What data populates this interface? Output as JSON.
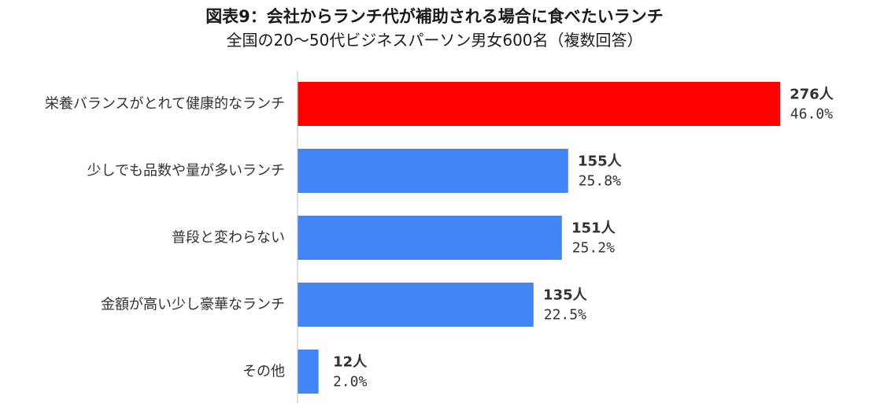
{
  "chart_data": {
    "type": "bar",
    "orientation": "horizontal",
    "title": "図表9：会社からランチ代が補助される場合に食べたいランチ",
    "subtitle": "全国の20～50代ビジネスパーソン男女600名（複数回答）",
    "categories": [
      "栄養バランスがとれて健康的なランチ",
      "少しでも品数や量が多いランチ",
      "普段と変わらない",
      "金額が高い少し豪華なランチ",
      "その他"
    ],
    "values": [
      46.0,
      25.8,
      25.2,
      22.5,
      2.0
    ],
    "counts": [
      "276人",
      "155人",
      "151人",
      "135人",
      "12人"
    ],
    "value_labels": [
      "46.0%",
      "25.8%",
      "25.2%",
      "22.5%",
      "2.0%"
    ],
    "bar_colors": [
      "#FF0000",
      "#4285F4",
      "#4285F4",
      "#4285F4",
      "#4285F4"
    ],
    "xlim": [
      0,
      46.0
    ],
    "grid": false,
    "legend": "none"
  }
}
